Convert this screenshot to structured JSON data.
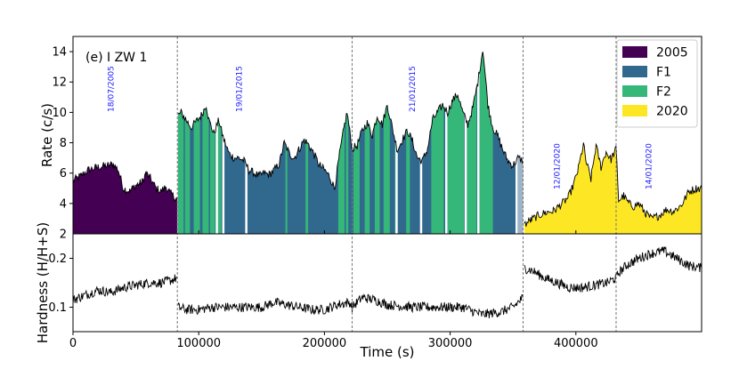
{
  "chart_data": {
    "type": "area",
    "panel_label": "(e) I ZW 1",
    "xlabel": "Time (s)",
    "xlim": [
      0,
      500000
    ],
    "xticks": [
      0,
      100000,
      200000,
      300000,
      400000
    ],
    "xtick_labels": [
      "0",
      "100000",
      "200000",
      "300000",
      "400000"
    ],
    "top_panel": {
      "ylabel": "Rate (c/s)",
      "ylim": [
        2,
        15
      ],
      "yticks": [
        4,
        6,
        8,
        10,
        12,
        14
      ],
      "ytick_labels": [
        "4",
        "6",
        "8",
        "10",
        "12",
        "14"
      ]
    },
    "bottom_panel": {
      "ylabel": "Hardness (H/H+S)",
      "ylim": [
        0.05,
        0.25
      ],
      "yticks": [
        0.1,
        0.2
      ],
      "ytick_labels": [
        "0.1",
        "0.2"
      ]
    },
    "legend": {
      "position": "top-right",
      "entries": [
        {
          "label": "2005",
          "color": "#440154"
        },
        {
          "label": "F1",
          "color": "#31688e"
        },
        {
          "label": "F2",
          "color": "#35b779"
        },
        {
          "label": "2020",
          "color": "#fde725"
        }
      ]
    },
    "boundaries": [
      83000,
      222000,
      358000,
      432000
    ],
    "observations": [
      {
        "date": "18/07/2005",
        "x": 30000
      },
      {
        "date": "19/01/2015",
        "x": 132000
      },
      {
        "date": "21/01/2015",
        "x": 270000
      },
      {
        "date": "12/01/2020",
        "x": 385000
      },
      {
        "date": "14/01/2020",
        "x": 458000
      }
    ],
    "rate_keypoints": [
      [
        0,
        5.5
      ],
      [
        6000,
        5.8
      ],
      [
        12000,
        6.2
      ],
      [
        20000,
        6.4
      ],
      [
        28000,
        6.5
      ],
      [
        32000,
        6.6
      ],
      [
        36000,
        6.2
      ],
      [
        40000,
        5.0
      ],
      [
        45000,
        4.8
      ],
      [
        50000,
        5.2
      ],
      [
        55000,
        5.4
      ],
      [
        58000,
        6.0
      ],
      [
        62000,
        5.6
      ],
      [
        66000,
        5.0
      ],
      [
        70000,
        4.8
      ],
      [
        74000,
        5.1
      ],
      [
        78000,
        4.6
      ],
      [
        83000,
        4.3
      ],
      [
        83500,
        9.8
      ],
      [
        86000,
        10.0
      ],
      [
        90000,
        9.5
      ],
      [
        94000,
        9.0
      ],
      [
        98000,
        9.4
      ],
      [
        102000,
        9.8
      ],
      [
        106000,
        10.5
      ],
      [
        108000,
        9.5
      ],
      [
        112000,
        8.6
      ],
      [
        116000,
        9.5
      ],
      [
        118000,
        8.8
      ],
      [
        120000,
        8.2
      ],
      [
        124000,
        7.3
      ],
      [
        128000,
        7.0
      ],
      [
        132000,
        7.0
      ],
      [
        136000,
        6.8
      ],
      [
        140000,
        6.2
      ],
      [
        144000,
        6.0
      ],
      [
        148000,
        5.8
      ],
      [
        152000,
        6.0
      ],
      [
        156000,
        5.9
      ],
      [
        160000,
        6.2
      ],
      [
        164000,
        6.6
      ],
      [
        168000,
        8.0
      ],
      [
        172000,
        7.3
      ],
      [
        176000,
        7.0
      ],
      [
        180000,
        7.6
      ],
      [
        184000,
        8.2
      ],
      [
        188000,
        7.8
      ],
      [
        192000,
        7.2
      ],
      [
        196000,
        6.5
      ],
      [
        200000,
        6.2
      ],
      [
        204000,
        5.8
      ],
      [
        208000,
        5.0
      ],
      [
        212000,
        7.2
      ],
      [
        216000,
        9.2
      ],
      [
        218000,
        10.0
      ],
      [
        222000,
        7.6
      ],
      [
        226000,
        7.8
      ],
      [
        230000,
        8.8
      ],
      [
        234000,
        9.3
      ],
      [
        238000,
        8.5
      ],
      [
        242000,
        9.8
      ],
      [
        246000,
        9.2
      ],
      [
        250000,
        10.5
      ],
      [
        254000,
        9.0
      ],
      [
        258000,
        7.5
      ],
      [
        262000,
        8.2
      ],
      [
        266000,
        8.8
      ],
      [
        270000,
        8.1
      ],
      [
        274000,
        7.0
      ],
      [
        278000,
        6.8
      ],
      [
        282000,
        7.6
      ],
      [
        286000,
        9.5
      ],
      [
        290000,
        10.0
      ],
      [
        294000,
        10.5
      ],
      [
        298000,
        10.0
      ],
      [
        302000,
        10.8
      ],
      [
        306000,
        11.2
      ],
      [
        310000,
        10.0
      ],
      [
        314000,
        9.2
      ],
      [
        318000,
        10.3
      ],
      [
        322000,
        12.0
      ],
      [
        326000,
        14.2
      ],
      [
        330000,
        10.5
      ],
      [
        334000,
        9.0
      ],
      [
        338000,
        8.4
      ],
      [
        342000,
        7.5
      ],
      [
        346000,
        6.8
      ],
      [
        350000,
        6.5
      ],
      [
        354000,
        7.0
      ],
      [
        358000,
        6.8
      ],
      [
        359000,
        2.6
      ],
      [
        364000,
        2.9
      ],
      [
        370000,
        3.2
      ],
      [
        376000,
        3.4
      ],
      [
        382000,
        3.5
      ],
      [
        388000,
        3.9
      ],
      [
        394000,
        4.4
      ],
      [
        398000,
        5.2
      ],
      [
        402000,
        6.3
      ],
      [
        406000,
        7.9
      ],
      [
        408000,
        6.8
      ],
      [
        412000,
        5.6
      ],
      [
        416000,
        7.8
      ],
      [
        420000,
        6.4
      ],
      [
        424000,
        7.4
      ],
      [
        428000,
        6.9
      ],
      [
        432000,
        7.6
      ],
      [
        434000,
        4.2
      ],
      [
        438000,
        4.5
      ],
      [
        442000,
        4.0
      ],
      [
        446000,
        3.8
      ],
      [
        450000,
        4.0
      ],
      [
        455000,
        3.4
      ],
      [
        460000,
        3.0
      ],
      [
        466000,
        3.2
      ],
      [
        472000,
        3.6
      ],
      [
        478000,
        3.5
      ],
      [
        484000,
        3.9
      ],
      [
        490000,
        4.8
      ],
      [
        496000,
        5.0
      ],
      [
        500000,
        5.0
      ]
    ],
    "hardness_keypoints": [
      [
        0,
        0.115
      ],
      [
        10000,
        0.125
      ],
      [
        20000,
        0.135
      ],
      [
        30000,
        0.13
      ],
      [
        40000,
        0.14
      ],
      [
        50000,
        0.145
      ],
      [
        60000,
        0.15
      ],
      [
        70000,
        0.15
      ],
      [
        78000,
        0.155
      ],
      [
        83000,
        0.16
      ],
      [
        83500,
        0.1
      ],
      [
        90000,
        0.095
      ],
      [
        100000,
        0.095
      ],
      [
        110000,
        0.1
      ],
      [
        130000,
        0.1
      ],
      [
        150000,
        0.1
      ],
      [
        160000,
        0.11
      ],
      [
        170000,
        0.105
      ],
      [
        180000,
        0.1
      ],
      [
        190000,
        0.095
      ],
      [
        200000,
        0.095
      ],
      [
        210000,
        0.105
      ],
      [
        220000,
        0.11
      ],
      [
        222000,
        0.1
      ],
      [
        230000,
        0.12
      ],
      [
        240000,
        0.115
      ],
      [
        250000,
        0.105
      ],
      [
        270000,
        0.1
      ],
      [
        290000,
        0.1
      ],
      [
        310000,
        0.1
      ],
      [
        325000,
        0.085
      ],
      [
        340000,
        0.09
      ],
      [
        350000,
        0.1
      ],
      [
        358000,
        0.12
      ],
      [
        359000,
        0.18
      ],
      [
        365000,
        0.175
      ],
      [
        375000,
        0.16
      ],
      [
        385000,
        0.15
      ],
      [
        395000,
        0.14
      ],
      [
        405000,
        0.14
      ],
      [
        415000,
        0.145
      ],
      [
        425000,
        0.15
      ],
      [
        432000,
        0.16
      ],
      [
        434000,
        0.17
      ],
      [
        440000,
        0.185
      ],
      [
        450000,
        0.2
      ],
      [
        460000,
        0.21
      ],
      [
        470000,
        0.215
      ],
      [
        480000,
        0.2
      ],
      [
        490000,
        0.185
      ],
      [
        500000,
        0.18
      ]
    ],
    "f2_intervals": [
      [
        83500,
        88000
      ],
      [
        89000,
        93000
      ],
      [
        96000,
        101000
      ],
      [
        103000,
        108000
      ],
      [
        109000,
        113000
      ],
      [
        114000,
        118000
      ],
      [
        169000,
        170500
      ],
      [
        185000,
        187000
      ],
      [
        211000,
        216000
      ],
      [
        217000,
        219000
      ],
      [
        223000,
        228000
      ],
      [
        232000,
        236000
      ],
      [
        240000,
        244000
      ],
      [
        247000,
        252000
      ],
      [
        256000,
        258000
      ],
      [
        265000,
        268000
      ],
      [
        285000,
        295000
      ],
      [
        297000,
        311000
      ],
      [
        312000,
        321000
      ],
      [
        322000,
        334000
      ]
    ],
    "white_gaps": [
      113500,
      118700,
      137000,
      256500,
      276000,
      296000,
      311500,
      321500,
      352000
    ]
  }
}
